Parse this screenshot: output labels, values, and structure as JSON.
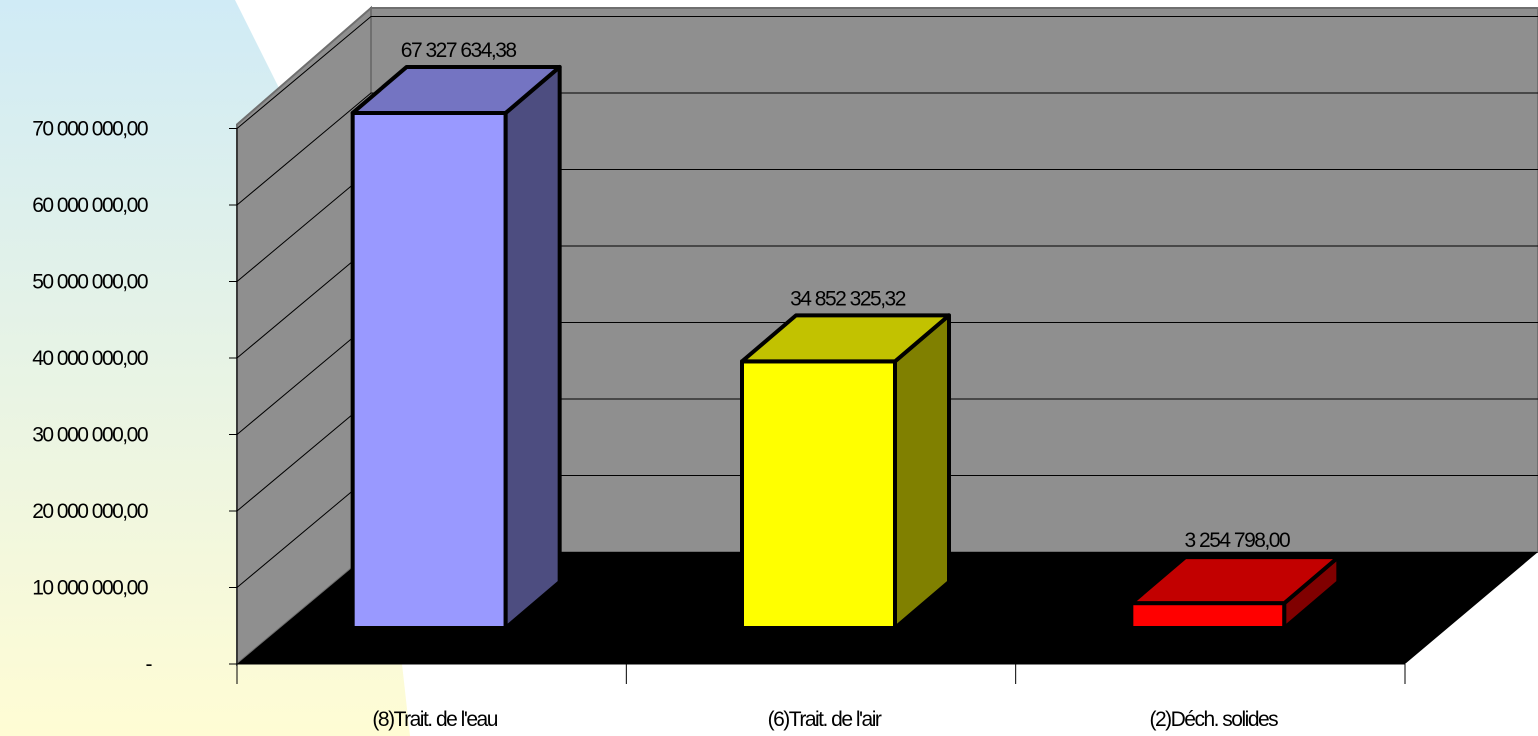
{
  "chart_data": {
    "type": "bar",
    "categories": [
      "(8)Trait. de l'eau",
      "(6)Trait. de l'air",
      "(2)Déch. solides"
    ],
    "values": [
      67327634.38,
      34852325.32,
      3254798.0
    ],
    "value_labels": [
      "67 327 634,38",
      "34 852 325,32",
      "3 254 798,00"
    ],
    "bar_colors": [
      "#9999ff",
      "#ffff00",
      "#ff0000"
    ],
    "ylim": [
      0,
      70000000
    ],
    "y_ticks": [
      0,
      10000000,
      20000000,
      30000000,
      40000000,
      50000000,
      60000000,
      70000000
    ],
    "y_tick_labels": [
      "-",
      "10 000 000,00",
      "20 000 000,00",
      "30 000 000,00",
      "40 000 000,00",
      "50 000 000,00",
      "60 000 000,00",
      "70 000 000,00"
    ],
    "grid": true,
    "style": "3d-column",
    "colors": {
      "wall": "#8f8f8f",
      "floor": "#000000",
      "gridline": "#000000",
      "background_gradient": [
        "#d0ebf6",
        "#fffcd4"
      ]
    }
  }
}
